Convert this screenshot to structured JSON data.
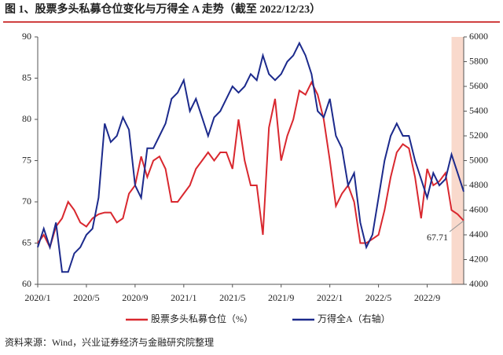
{
  "chart_data": {
    "type": "line",
    "title": "图 1、股票多头私募仓位变化与万得全 A 走势（截至 2022/12/23）",
    "source": "资料来源：Wind，兴业证券经济与金融研究院整理",
    "x": [
      0,
      0.5,
      1,
      1.5,
      2,
      2.5,
      3,
      3.5,
      4,
      4.5,
      5,
      5.5,
      6,
      6.5,
      7,
      7.5,
      8,
      8.5,
      9,
      9.5,
      10,
      10.5,
      11,
      11.5,
      12,
      12.5,
      13,
      13.5,
      14,
      14.5,
      15,
      15.5,
      16,
      16.5,
      17,
      17.5,
      18,
      18.5,
      19,
      19.5,
      20,
      20.5,
      21,
      21.5,
      22,
      22.5,
      23,
      23.5,
      24,
      24.5,
      25,
      25.5,
      26,
      26.5,
      27,
      27.5,
      28,
      28.5,
      29,
      29.5,
      30,
      30.5,
      31,
      31.5,
      32,
      32.5,
      33,
      33.5,
      34,
      34.5,
      35
    ],
    "xlim": [
      0,
      35
    ],
    "xticks": [
      {
        "value": 0,
        "label": "2020/1"
      },
      {
        "value": 4,
        "label": "2020/5"
      },
      {
        "value": 8,
        "label": "2020/9"
      },
      {
        "value": 12,
        "label": "2021/1"
      },
      {
        "value": 16,
        "label": "2021/5"
      },
      {
        "value": 20,
        "label": "2021/9"
      },
      {
        "value": 24,
        "label": "2022/1"
      },
      {
        "value": 28,
        "label": "2022/5"
      },
      {
        "value": 32,
        "label": "2022/9"
      }
    ],
    "ylim": [
      60,
      90
    ],
    "yticks": [
      60,
      65,
      70,
      75,
      80,
      85,
      90
    ],
    "y2lim": [
      4000,
      6000
    ],
    "y2ticks": [
      4000,
      4200,
      4400,
      4600,
      4800,
      5000,
      5200,
      5400,
      5600,
      5800,
      6000
    ],
    "shaded_range": [
      34,
      35
    ],
    "series": [
      {
        "name": "股票多头私募仓位（%）",
        "color": "#d9282f",
        "values": [
          65,
          66,
          64.5,
          67,
          68,
          70,
          69,
          67.5,
          67,
          68,
          68.5,
          68.7,
          68.7,
          67.5,
          68,
          71,
          72,
          75.5,
          73,
          75,
          75.5,
          74,
          70,
          70,
          71,
          72,
          74,
          75,
          76,
          75,
          76,
          76,
          74,
          80,
          75,
          72,
          72,
          66,
          79,
          82.5,
          75,
          78,
          80,
          83.5,
          83,
          84.5,
          83,
          80,
          75,
          69.5,
          71,
          72,
          70,
          65,
          65,
          65.5,
          66,
          69,
          73,
          76,
          77,
          76.5,
          73,
          68,
          74,
          72,
          72.5,
          73.5,
          69,
          68.5,
          67.71
        ]
      },
      {
        "name": "万得全A（右轴）",
        "color": "#1c2a8c",
        "axis": "y2",
        "values": [
          4300,
          4450,
          4300,
          4500,
          4100,
          4100,
          4250,
          4300,
          4400,
          4450,
          4700,
          5300,
          5150,
          5200,
          5350,
          5250,
          4800,
          4700,
          5100,
          5100,
          5200,
          5300,
          5500,
          5550,
          5650,
          5400,
          5500,
          5350,
          5200,
          5350,
          5400,
          5500,
          5600,
          5550,
          5600,
          5700,
          5650,
          5850,
          5700,
          5650,
          5700,
          5800,
          5850,
          5950,
          5850,
          5700,
          5400,
          5350,
          5500,
          5200,
          5100,
          4800,
          4900,
          4500,
          4300,
          4400,
          4700,
          5000,
          5200,
          5300,
          5200,
          5200,
          5000,
          4850,
          4700,
          4900,
          4800,
          4850,
          5050,
          4900,
          4750
        ]
      }
    ],
    "annotations": [
      {
        "text": "67.71",
        "x": 35,
        "y": 67.71
      }
    ]
  }
}
